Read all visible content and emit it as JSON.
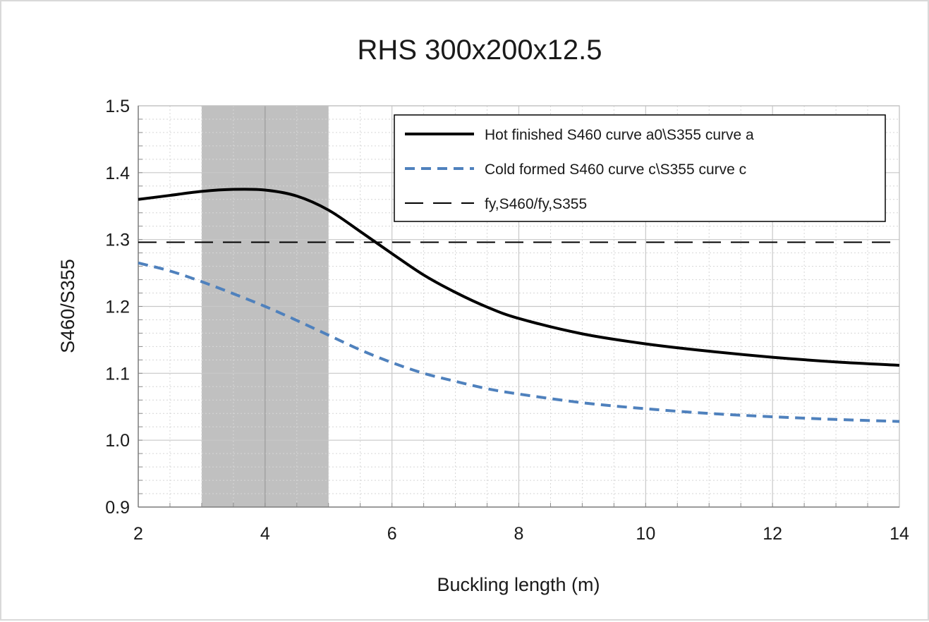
{
  "chart_data": {
    "type": "line",
    "title": "RHS 300x200x12.5",
    "xlabel": "Buckling length (m)",
    "ylabel": "S460/S355",
    "xlim": [
      2,
      14
    ],
    "ylim": [
      0.9,
      1.5
    ],
    "x_ticks": [
      "2",
      "4",
      "6",
      "8",
      "10",
      "12",
      "14"
    ],
    "y_ticks": [
      "0.9",
      "1.0",
      "1.1",
      "1.2",
      "1.3",
      "1.4",
      "1.5"
    ],
    "grid": true,
    "legend_position": "top-right",
    "shaded_region": {
      "x": [
        3,
        5
      ],
      "color": "#c0c0c0"
    },
    "series": [
      {
        "name": "Hot finished S460 curve a0\\S355 curve a",
        "style": "solid",
        "color": "#000000",
        "x": [
          2,
          2.5,
          3,
          3.5,
          4,
          4.5,
          5,
          5.5,
          6,
          6.5,
          7,
          7.5,
          8,
          9,
          10,
          11,
          12,
          13,
          14
        ],
        "y": [
          1.36,
          1.366,
          1.372,
          1.375,
          1.374,
          1.365,
          1.344,
          1.312,
          1.279,
          1.247,
          1.221,
          1.199,
          1.182,
          1.159,
          1.144,
          1.133,
          1.124,
          1.117,
          1.112
        ]
      },
      {
        "name": "Cold formed S460 curve c\\S355 curve c",
        "style": "dashed",
        "color": "#4f81bd",
        "x": [
          2,
          2.5,
          3,
          3.5,
          4,
          4.5,
          5,
          5.5,
          6,
          6.5,
          7,
          7.5,
          8,
          9,
          10,
          11,
          12,
          13,
          14
        ],
        "y": [
          1.265,
          1.253,
          1.237,
          1.219,
          1.2,
          1.179,
          1.157,
          1.135,
          1.116,
          1.1,
          1.088,
          1.077,
          1.069,
          1.056,
          1.047,
          1.04,
          1.035,
          1.031,
          1.028
        ]
      },
      {
        "name": "fy,S460/fy,S355",
        "style": "long-dash",
        "color": "#000000",
        "x": [
          2,
          14
        ],
        "y": [
          1.296,
          1.296
        ]
      }
    ]
  }
}
